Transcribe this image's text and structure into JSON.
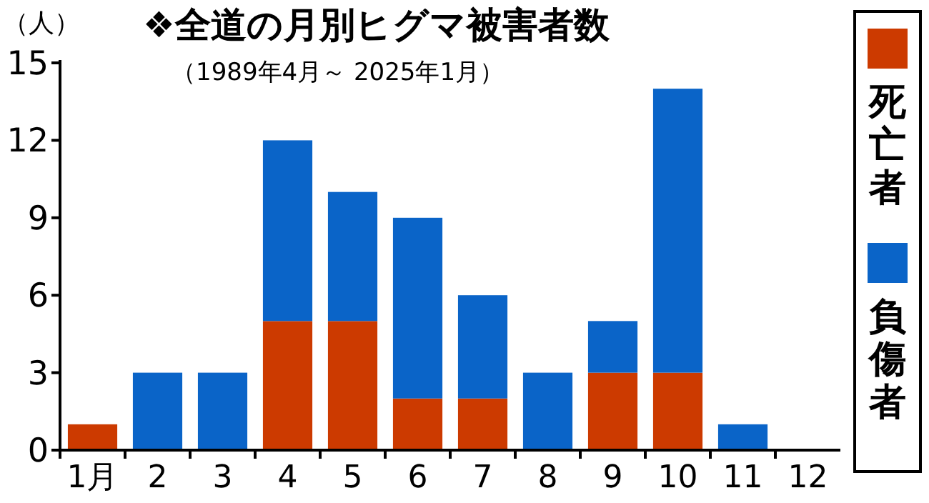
{
  "chart_data": {
    "type": "bar",
    "title": "❖全道の月別ヒグマ被害者数",
    "subtitle": "（1989年4月～ 2025年1月）",
    "ylabel": "（人）",
    "categories": [
      "1月",
      "2",
      "3",
      "4",
      "5",
      "6",
      "7",
      "8",
      "9",
      "10",
      "11",
      "12"
    ],
    "stacked": true,
    "series": [
      {
        "name": "死亡者",
        "color": "#cc3a00",
        "values": [
          1,
          0,
          0,
          5,
          5,
          2,
          2,
          0,
          3,
          3,
          0,
          0
        ]
      },
      {
        "name": "負傷者",
        "color": "#0a64c8",
        "values": [
          0,
          3,
          3,
          7,
          5,
          7,
          4,
          3,
          2,
          11,
          1,
          0
        ]
      }
    ],
    "ylim": [
      0,
      15
    ],
    "yticks": [
      0,
      3,
      6,
      9,
      12,
      15
    ],
    "legend": "right",
    "grid": false
  }
}
